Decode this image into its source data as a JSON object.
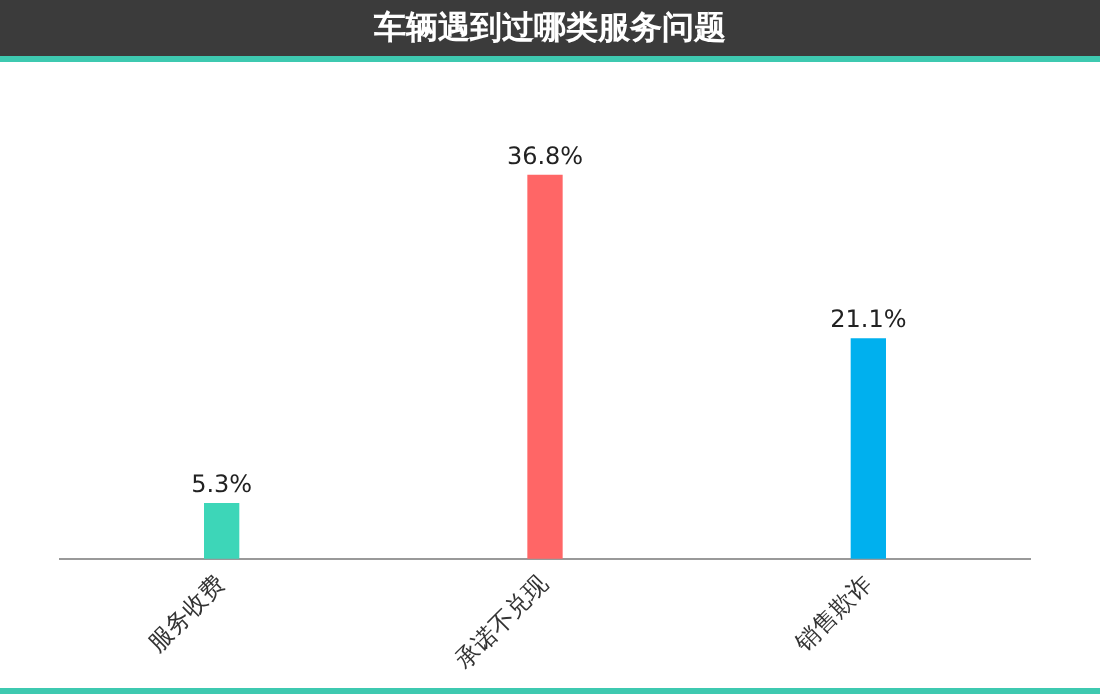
{
  "chart_data": {
    "type": "bar",
    "title": "车辆遇到过哪类服务问题",
    "categories": [
      "服务收费",
      "承诺不兑现",
      "销售欺诈"
    ],
    "values": [
      5.3,
      36.8,
      21.1
    ],
    "colors": [
      "#3dd6b8",
      "#ff6666",
      "#00b0ee"
    ],
    "value_labels": [
      "5.3%",
      "36.8%",
      "21.1%"
    ],
    "grid": false,
    "legend": false
  }
}
